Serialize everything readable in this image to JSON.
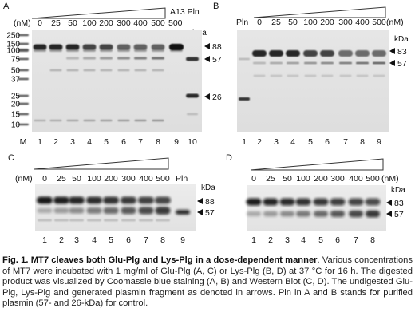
{
  "panels": [
    {
      "id": "A",
      "letter": "A",
      "unit": "(nM)",
      "concentrations": [
        "0",
        "25",
        "50",
        "100",
        "200",
        "300",
        "400",
        "500"
      ],
      "extra_top": [
        "500"
      ],
      "extra_label": "A13 Pln",
      "lanes": [
        "M",
        "1",
        "2",
        "3",
        "4",
        "5",
        "6",
        "7",
        "8",
        "9",
        "10"
      ],
      "markers": [
        "250",
        "150",
        "100",
        "75",
        "50",
        "37",
        "25",
        "20",
        "15",
        "10"
      ],
      "kda": "kDa",
      "arrows": [
        "88",
        "57",
        "26"
      ]
    },
    {
      "id": "B",
      "letter": "B",
      "unit": "(nM)",
      "first_label": "Pln",
      "concentrations": [
        "0",
        "25",
        "50",
        "100",
        "200",
        "300",
        "400",
        "500"
      ],
      "lanes": [
        "1",
        "2",
        "3",
        "4",
        "5",
        "6",
        "7",
        "8",
        "9"
      ],
      "kda": "kDa",
      "arrows": [
        "83",
        "57"
      ]
    },
    {
      "id": "C",
      "letter": "C",
      "unit": "(nM)",
      "concentrations": [
        "0",
        "25",
        "50",
        "100",
        "200",
        "300",
        "400",
        "500"
      ],
      "last_label": "Pln",
      "lanes": [
        "1",
        "2",
        "3",
        "4",
        "5",
        "6",
        "7",
        "8",
        "9"
      ],
      "kda": "kDa",
      "arrows": [
        "88",
        "57"
      ]
    },
    {
      "id": "D",
      "letter": "D",
      "unit": "(nM)",
      "concentrations": [
        "0",
        "25",
        "50",
        "100",
        "200",
        "300",
        "400",
        "500"
      ],
      "lanes": [
        "1",
        "2",
        "3",
        "4",
        "5",
        "6",
        "7",
        "8"
      ],
      "kda": "kDa",
      "arrows": [
        "83",
        "57"
      ]
    }
  ],
  "caption": {
    "title": "Fig. 1. MT7 cleaves both Glu-Plg and Lys-Plg in a dose-dependent manner",
    "body": ". Various concentrations of MT7 were incubated with 1 mg/ml of Glu-Plg (A, C) or Lys-Plg (B, D) at 37 °C for 16 h. The digested product was visualized by Coomassie blue staining (A, B) and Western Blot (C, D). The undigested Glu-Plg, Lys-Plg and generated plasmin fragment as denoted in arrows. Pln in A and B stands for purified plasmin (57- and 26-kDa) for control."
  }
}
